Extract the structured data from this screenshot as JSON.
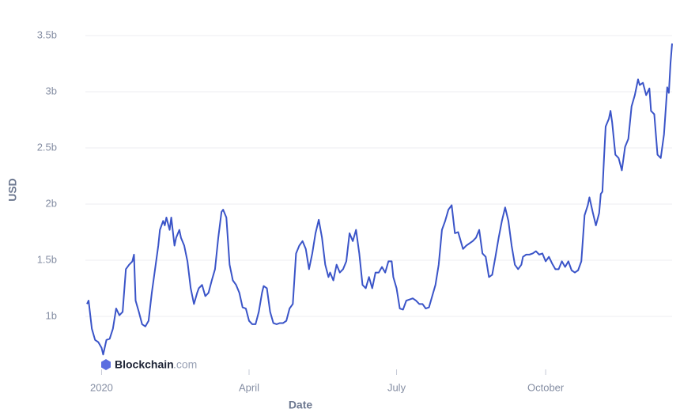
{
  "chart_data": {
    "type": "line",
    "x_label": "Date",
    "y_label": "USD",
    "watermark": {
      "brand": "Blockchain",
      "suffix": ".com"
    },
    "xlim": [
      -9,
      352
    ],
    "ylim": [
      577000000,
      3606000000
    ],
    "xticks": [
      {
        "value": 0,
        "label": "2020"
      },
      {
        "value": 91,
        "label": "April"
      },
      {
        "value": 182,
        "label": "July"
      },
      {
        "value": 274,
        "label": "October"
      }
    ],
    "yticks": [
      {
        "value": 1000000000,
        "label": "1b"
      },
      {
        "value": 1500000000,
        "label": "1.5b"
      },
      {
        "value": 2000000000,
        "label": "2b"
      },
      {
        "value": 2500000000,
        "label": "2.5b"
      },
      {
        "value": 3000000000,
        "label": "3b"
      },
      {
        "value": 3500000000,
        "label": "3.5b"
      }
    ],
    "grid": true,
    "x": [
      -9,
      -8,
      -6,
      -4,
      -2,
      0,
      1,
      3,
      5,
      7,
      9,
      11,
      13,
      15,
      17,
      19,
      20,
      21,
      23,
      25,
      27,
      29,
      31,
      33,
      35,
      36,
      38,
      39,
      40,
      42,
      43,
      45,
      46,
      48,
      49,
      51,
      53,
      55,
      57,
      59,
      60,
      62,
      64,
      66,
      68,
      70,
      72,
      74,
      75,
      77,
      79,
      81,
      83,
      85,
      87,
      89,
      91,
      93,
      95,
      97,
      99,
      100,
      102,
      104,
      106,
      108,
      110,
      112,
      114,
      116,
      118,
      120,
      122,
      124,
      126,
      128,
      130,
      132,
      134,
      136,
      138,
      140,
      141,
      143,
      145,
      147,
      149,
      151,
      153,
      155,
      157,
      159,
      161,
      163,
      165,
      167,
      169,
      171,
      173,
      175,
      177,
      179,
      180,
      182,
      184,
      186,
      188,
      190,
      192,
      194,
      196,
      198,
      200,
      202,
      204,
      206,
      208,
      210,
      212,
      214,
      216,
      218,
      220,
      221,
      223,
      225,
      227,
      229,
      231,
      233,
      235,
      237,
      239,
      241,
      243,
      245,
      247,
      249,
      251,
      253,
      255,
      257,
      259,
      260,
      262,
      264,
      266,
      268,
      270,
      272,
      274,
      276,
      278,
      280,
      282,
      284,
      286,
      288,
      290,
      292,
      294,
      296,
      298,
      300,
      301,
      303,
      305,
      307,
      308,
      309,
      310,
      311,
      313,
      314,
      315,
      317,
      319,
      321,
      323,
      325,
      327,
      329,
      331,
      332,
      334,
      336,
      338,
      339,
      341,
      343,
      345,
      347,
      349,
      350,
      351,
      352
    ],
    "series": [
      {
        "color": "#3a54c8",
        "values": [
          1110000000.0,
          1140000000.0,
          890000000.0,
          790000000.0,
          770000000.0,
          720000000.0,
          660000000.0,
          790000000.0,
          800000000.0,
          890000000.0,
          1070000000.0,
          1010000000.0,
          1040000000.0,
          1420000000.0,
          1460000000.0,
          1490000000.0,
          1550000000.0,
          1140000000.0,
          1040000000.0,
          930000000.0,
          910000000.0,
          960000000.0,
          1210000000.0,
          1420000000.0,
          1630000000.0,
          1770000000.0,
          1850000000.0,
          1810000000.0,
          1880000000.0,
          1770000000.0,
          1880000000.0,
          1630000000.0,
          1700000000.0,
          1770000000.0,
          1700000000.0,
          1630000000.0,
          1490000000.0,
          1250000000.0,
          1110000000.0,
          1210000000.0,
          1250000000.0,
          1280000000.0,
          1180000000.0,
          1210000000.0,
          1320000000.0,
          1420000000.0,
          1700000000.0,
          1930000000.0,
          1950000000.0,
          1880000000.0,
          1460000000.0,
          1320000000.0,
          1280000000.0,
          1210000000.0,
          1080000000.0,
          1070000000.0,
          960000000.0,
          930000000.0,
          930000000.0,
          1040000000.0,
          1210000000.0,
          1270000000.0,
          1250000000.0,
          1040000000.0,
          940000000.0,
          930000000.0,
          940000000.0,
          940000000.0,
          960000000.0,
          1070000000.0,
          1110000000.0,
          1560000000.0,
          1630000000.0,
          1670000000.0,
          1600000000.0,
          1420000000.0,
          1560000000.0,
          1740000000.0,
          1860000000.0,
          1700000000.0,
          1460000000.0,
          1350000000.0,
          1390000000.0,
          1320000000.0,
          1460000000.0,
          1390000000.0,
          1420000000.0,
          1490000000.0,
          1740000000.0,
          1670000000.0,
          1770000000.0,
          1560000000.0,
          1280000000.0,
          1250000000.0,
          1350000000.0,
          1250000000.0,
          1390000000.0,
          1390000000.0,
          1440000000.0,
          1390000000.0,
          1490000000.0,
          1490000000.0,
          1350000000.0,
          1250000000.0,
          1070000000.0,
          1060000000.0,
          1140000000.0,
          1150000000.0,
          1160000000.0,
          1140000000.0,
          1110000000.0,
          1110000000.0,
          1070000000.0,
          1080000000.0,
          1180000000.0,
          1280000000.0,
          1460000000.0,
          1770000000.0,
          1850000000.0,
          1950000000.0,
          1990000000.0,
          1740000000.0,
          1750000000.0,
          1700000000.0,
          1600000000.0,
          1630000000.0,
          1650000000.0,
          1670000000.0,
          1700000000.0,
          1770000000.0,
          1560000000.0,
          1530000000.0,
          1350000000.0,
          1370000000.0,
          1530000000.0,
          1700000000.0,
          1850000000.0,
          1970000000.0,
          1850000000.0,
          1630000000.0,
          1460000000.0,
          1420000000.0,
          1460000000.0,
          1530000000.0,
          1550000000.0,
          1550000000.0,
          1560000000.0,
          1580000000.0,
          1550000000.0,
          1560000000.0,
          1490000000.0,
          1530000000.0,
          1470000000.0,
          1420000000.0,
          1420000000.0,
          1490000000.0,
          1440000000.0,
          1490000000.0,
          1410000000.0,
          1390000000.0,
          1410000000.0,
          1490000000.0,
          1900000000.0,
          1990000000.0,
          2060000000.0,
          1930000000.0,
          1810000000.0,
          1920000000.0,
          2090000000.0,
          2110000000.0,
          2410000000.0,
          2690000000.0,
          2760000000.0,
          2830000000.0,
          2730000000.0,
          2440000000.0,
          2410000000.0,
          2300000000.0,
          2510000000.0,
          2580000000.0,
          2870000000.0,
          2970000000.0,
          3110000000.0,
          3060000000.0,
          3080000000.0,
          2970000000.0,
          3030000000.0,
          2830000000.0,
          2800000000.0,
          2440000000.0,
          2410000000.0,
          2620000000.0,
          3040000000.0,
          2990000000.0,
          3250000000.0,
          3430000000.0
        ]
      }
    ]
  }
}
